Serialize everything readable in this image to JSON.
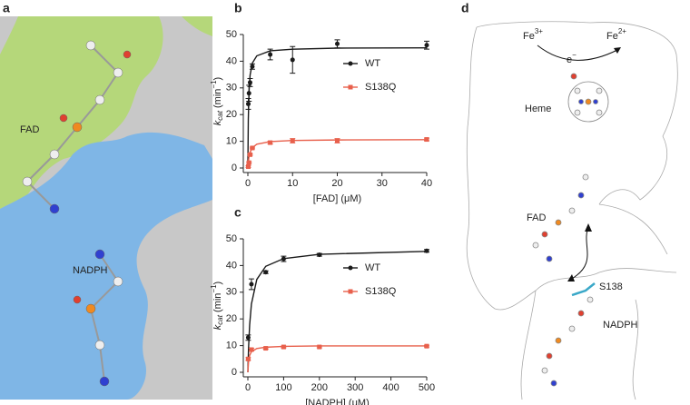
{
  "panel_a": {
    "label": "a",
    "labels": [
      "FAD",
      "NADPH"
    ]
  },
  "panel_d": {
    "label": "d",
    "fe3": {
      "base": "Fe",
      "sup": "3+"
    },
    "fe2": {
      "base": "Fe",
      "sup": "2+"
    },
    "electron": {
      "base": "e",
      "sup": "−"
    },
    "labels": {
      "heme": "Heme",
      "fad": "FAD",
      "s138": "S138",
      "nadph": "NADPH"
    }
  },
  "chart_data": [
    {
      "type": "scatter",
      "panel": "b",
      "x_label": "[FAD] (μM)",
      "y_label": {
        "symbol": "k",
        "subscript": "cat",
        "unit_open": " (min",
        "superscript": "−1",
        "unit_close": ")"
      },
      "xlim": [
        0,
        40
      ],
      "xticks": [
        0,
        10,
        20,
        30,
        40
      ],
      "ylim": [
        0,
        50
      ],
      "yticks": [
        0,
        10,
        20,
        30,
        40,
        50
      ],
      "legend": "right",
      "series": [
        {
          "name": "WT",
          "color": "#1a1a1a",
          "marker": "circle",
          "x": [
            0.1,
            0.25,
            0.5,
            1,
            5,
            10,
            20,
            40
          ],
          "values": [
            24,
            28,
            32,
            38,
            42.5,
            40.5,
            46.5,
            46
          ],
          "errors": [
            2,
            3,
            1.5,
            1,
            2,
            5,
            1.5,
            1.5
          ],
          "fit_x": [
            0,
            0.1,
            0.25,
            0.5,
            1,
            2,
            5,
            10,
            20,
            40
          ],
          "fit_values": [
            0,
            18.1,
            28.3,
            34.8,
            39.3,
            42,
            43.9,
            44.5,
            44.9,
            45
          ]
        },
        {
          "name": "S138Q",
          "color": "#e8604c",
          "marker": "square",
          "x": [
            0.1,
            0.25,
            0.5,
            1,
            5,
            10,
            20,
            40
          ],
          "values": [
            0.5,
            2,
            5,
            7.5,
            9.5,
            10.2,
            10.2,
            10.7
          ],
          "errors": [
            0.3,
            0.3,
            0.3,
            0.3,
            0.5,
            0.8,
            0.8,
            0.5
          ],
          "fit_x": [
            0,
            0.1,
            0.25,
            0.5,
            1,
            2,
            5,
            10,
            20,
            40
          ],
          "fit_values": [
            0,
            2.1,
            4.1,
            5.9,
            7.6,
            8.9,
            9.9,
            10.3,
            10.5,
            10.6
          ]
        }
      ]
    },
    {
      "type": "scatter",
      "panel": "c",
      "x_label": "[NADPH] (μM)",
      "y_label": {
        "symbol": "k",
        "subscript": "cat",
        "unit_open": " (min",
        "superscript": "−1",
        "unit_close": ")"
      },
      "xlim": [
        0,
        500
      ],
      "xticks": [
        0,
        100,
        200,
        300,
        400,
        500
      ],
      "ylim": [
        0,
        50
      ],
      "yticks": [
        0,
        10,
        20,
        30,
        40,
        50
      ],
      "legend": "right",
      "series": [
        {
          "name": "WT",
          "color": "#1a1a1a",
          "marker": "circle",
          "x": [
            1,
            10,
            50,
            100,
            200,
            500
          ],
          "values": [
            13,
            33,
            37.5,
            42.5,
            44,
            45.5
          ],
          "errors": [
            1,
            2,
            0.5,
            1,
            0.5,
            0.5
          ],
          "fit_x": [
            0,
            2,
            5,
            10,
            25,
            50,
            100,
            200,
            500
          ],
          "fit_values": [
            0,
            9.2,
            17.7,
            25.6,
            34.8,
            39.7,
            42.6,
            44.2,
            45.3
          ]
        },
        {
          "name": "S138Q",
          "color": "#e8604c",
          "marker": "square",
          "x": [
            1,
            10,
            50,
            100,
            200,
            500
          ],
          "values": [
            5,
            8.5,
            9,
            9.5,
            9.5,
            9.8
          ],
          "errors": [
            0.5,
            0.5,
            0.3,
            0.3,
            0.3,
            0.3
          ],
          "fit_x": [
            0,
            2,
            5,
            10,
            25,
            50,
            100,
            200,
            500
          ],
          "fit_values": [
            0,
            4,
            6.3,
            7.7,
            8.9,
            9.4,
            9.7,
            9.9,
            9.9
          ]
        }
      ]
    }
  ]
}
